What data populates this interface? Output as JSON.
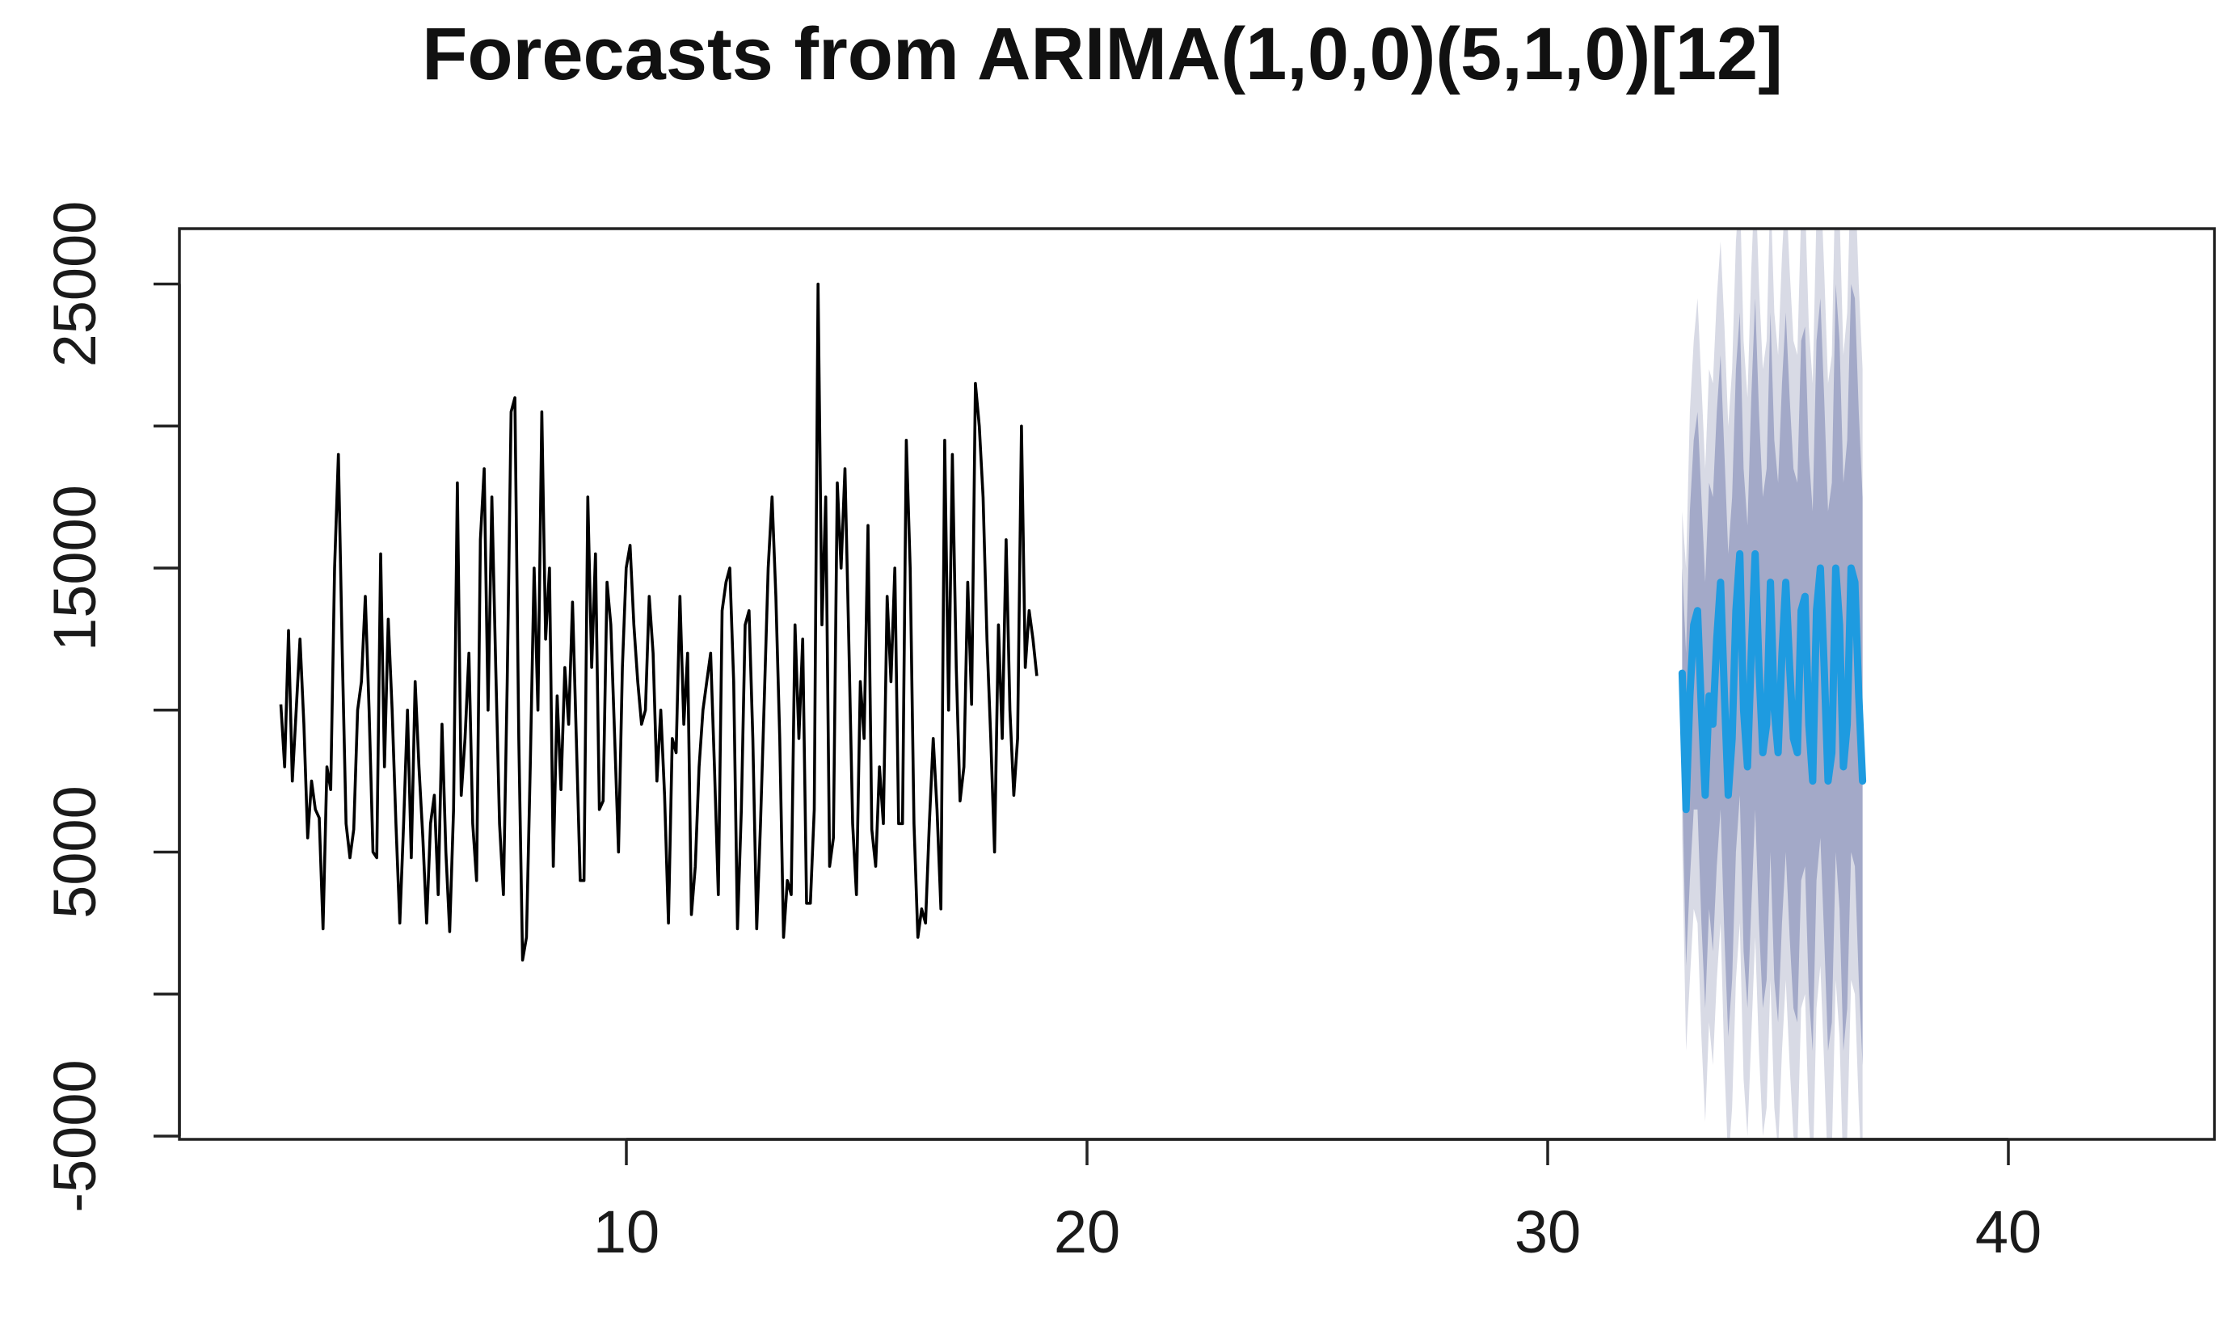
{
  "chart_data": {
    "type": "line",
    "title": "Forecasts from ARIMA(1,0,0)(5,1,0)[12]",
    "xlabel": "",
    "ylabel": "",
    "xlim": [
      2,
      43.3
    ],
    "ylim": [
      -5000,
      28000
    ],
    "x_ticks": [
      {
        "value": 10,
        "label": "10"
      },
      {
        "value": 20,
        "label": "20"
      },
      {
        "value": 30,
        "label": "30"
      },
      {
        "value": 40,
        "label": "40"
      }
    ],
    "y_ticks": [
      {
        "value": -5000,
        "label": "-5000"
      },
      {
        "value": 0,
        "label": ""
      },
      {
        "value": 5000,
        "label": "5000"
      },
      {
        "value": 10000,
        "label": ""
      },
      {
        "value": 15000,
        "label": "15000"
      },
      {
        "value": 20000,
        "label": ""
      },
      {
        "value": 25000,
        "label": "25000"
      }
    ],
    "grid": false,
    "colors": {
      "observed": "#000000",
      "forecast": "#1e9be0",
      "band80": "#a3a9c8",
      "band95": "#d8dae5"
    },
    "observed": {
      "start": 2.5,
      "step": 0.0833,
      "values": [
        10200,
        8000,
        12800,
        7500,
        10000,
        12500,
        9500,
        5500,
        7500,
        6500,
        6200,
        2300,
        8000,
        7200,
        15000,
        19000,
        12000,
        6000,
        4800,
        5800,
        10000,
        11000,
        14000,
        10000,
        5000,
        4800,
        15500,
        8000,
        13200,
        10000,
        6000,
        2500,
        6000,
        10000,
        4800,
        11000,
        8000,
        5500,
        2500,
        6000,
        7000,
        3500,
        9500,
        5000,
        2200,
        6500,
        18000,
        7000,
        9000,
        12000,
        6000,
        4000,
        16000,
        18500,
        10000,
        17500,
        11500,
        6000,
        3500,
        11000,
        20500,
        21000,
        9000,
        1200,
        2000,
        8000,
        15000,
        10000,
        20500,
        12500,
        15000,
        4500,
        10500,
        7200,
        11500,
        9500,
        13800,
        9000,
        4000,
        4000,
        17500,
        11500,
        15500,
        6500,
        6800,
        14500,
        13000,
        9000,
        5000,
        11500,
        15000,
        15800,
        13000,
        11000,
        9500,
        10000,
        14000,
        12000,
        7500,
        10000,
        7000,
        2500,
        9000,
        8500,
        14000,
        9500,
        12000,
        2800,
        4500,
        8000,
        10000,
        11000,
        12000,
        8000,
        3500,
        13500,
        14500,
        15000,
        11000,
        2300,
        6500,
        13000,
        13500,
        9000,
        2300,
        6000,
        10500,
        15000,
        17500,
        14000,
        9000,
        2000,
        4000,
        3500,
        13000,
        9000,
        12500,
        3200,
        3200,
        6500,
        25000,
        13000,
        17500,
        4500,
        5500,
        18000,
        15000,
        18500,
        12500,
        6000,
        3500,
        11000,
        9000,
        16500,
        5800,
        4500,
        8000,
        6000,
        14000,
        11000,
        15000,
        6000,
        6000,
        19500,
        15000,
        6000,
        2000,
        3000,
        2500,
        6000,
        9000,
        6500,
        3000,
        19500,
        10000,
        19000,
        11500,
        6800,
        8000,
        14500,
        10200,
        21500,
        20000,
        17500,
        12500,
        9000,
        5000,
        13000,
        9000,
        16000,
        10000,
        7000,
        9000,
        20000,
        11500,
        13500,
        12500,
        11200
      ],
      "start_label_note": ""
    },
    "forecast": {
      "start": 32.92,
      "step": 0.0833,
      "mean": [
        11300,
        6500,
        10500,
        13000,
        13500,
        10000,
        7000,
        10500,
        9500,
        12500,
        14500,
        10500,
        7000,
        9000,
        13500,
        15500,
        10000,
        8000,
        12000,
        15500,
        11500,
        8500,
        9500,
        14500,
        10000,
        8500,
        12000,
        14500,
        11500,
        9000,
        8500,
        13500,
        14000,
        9500,
        7500,
        13500,
        15000,
        11500,
        7500,
        8500,
        15000,
        13000,
        8000,
        9500,
        15000,
        14500,
        10500,
        7500
      ],
      "lo80": [
        7500,
        1000,
        4000,
        6500,
        6500,
        2500,
        -500,
        3000,
        1500,
        4500,
        6500,
        2000,
        -1500,
        500,
        5000,
        7000,
        1500,
        -500,
        3000,
        6500,
        2500,
        -500,
        500,
        5000,
        500,
        -1000,
        2500,
        5000,
        2000,
        -500,
        -1000,
        4000,
        4500,
        0,
        -2000,
        4000,
        5500,
        2000,
        -2000,
        -1000,
        5000,
        3000,
        -2000,
        -500,
        5000,
        4500,
        500,
        -2500
      ],
      "hi80": [
        15000,
        12000,
        17000,
        19500,
        20500,
        17500,
        14500,
        18000,
        17500,
        20500,
        22500,
        19000,
        15500,
        17500,
        22000,
        24000,
        18500,
        16500,
        21000,
        24500,
        20500,
        17500,
        18500,
        24000,
        19500,
        18000,
        21500,
        24000,
        21000,
        18500,
        18000,
        23000,
        23500,
        19000,
        17000,
        23000,
        24500,
        21000,
        17000,
        18000,
        25000,
        23000,
        18000,
        19500,
        25000,
        24500,
        20500,
        17500
      ],
      "lo95": [
        5500,
        -2000,
        500,
        3000,
        2500,
        -1500,
        -4500,
        -1000,
        -2500,
        500,
        2500,
        -2500,
        -6000,
        -4000,
        500,
        2500,
        -3000,
        -5000,
        -1500,
        2000,
        -2000,
        -5000,
        -4000,
        500,
        -4000,
        -5500,
        -2000,
        500,
        -2500,
        -5000,
        -5500,
        -500,
        0,
        -4500,
        -6500,
        -500,
        1000,
        -2500,
        -6500,
        -5500,
        500,
        -1500,
        -6500,
        -5000,
        500,
        0,
        -4000,
        -7000
      ],
      "hi95": [
        17000,
        15000,
        20500,
        23000,
        24500,
        21500,
        18500,
        22000,
        21500,
        24500,
        26500,
        23500,
        20000,
        22000,
        26500,
        28500,
        23000,
        21000,
        25500,
        29000,
        25000,
        22000,
        23000,
        28500,
        24000,
        22500,
        26000,
        28500,
        25500,
        23000,
        22500,
        27500,
        28000,
        23500,
        21500,
        27500,
        29000,
        25500,
        21500,
        22500,
        29500,
        27500,
        22500,
        24000,
        29500,
        29000,
        25000,
        22000
      ]
    }
  }
}
